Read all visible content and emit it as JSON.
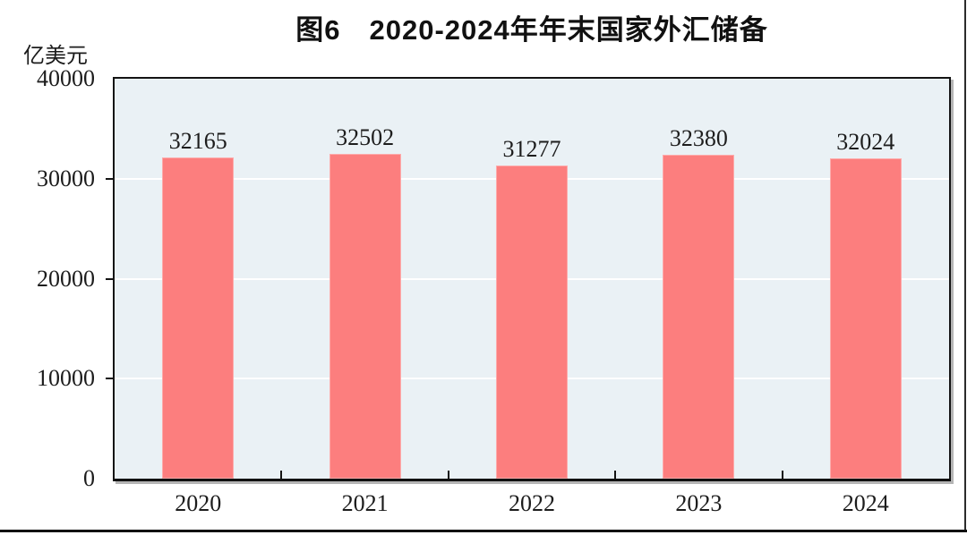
{
  "title": "图6　2020-2024年年末国家外汇储备",
  "colors": {
    "bar_fill": "#FC7E7E",
    "plot_background": "#EAF1F5",
    "gridline": "#FFFFFF",
    "axis_frame": "#141414",
    "text": "#1C1C1C"
  },
  "chart_data": {
    "type": "bar",
    "title": "图6　2020-2024年年末国家外汇储备",
    "categories": [
      "2020",
      "2021",
      "2022",
      "2023",
      "2024"
    ],
    "values": [
      32165,
      32502,
      31277,
      32380,
      32024
    ],
    "data_labels": [
      "32165",
      "32502",
      "31277",
      "32380",
      "32024"
    ],
    "xlabel": "",
    "ylabel": "亿美元",
    "ylim": [
      0,
      40000
    ],
    "ytick_interval": 10000,
    "yticks": [
      0,
      10000,
      20000,
      30000,
      40000
    ],
    "ytick_labels": [
      "0",
      "10000",
      "20000",
      "30000",
      "40000"
    ],
    "grid": "horizontal-major",
    "legend": "none",
    "show_value_labels_above_bars": true
  }
}
